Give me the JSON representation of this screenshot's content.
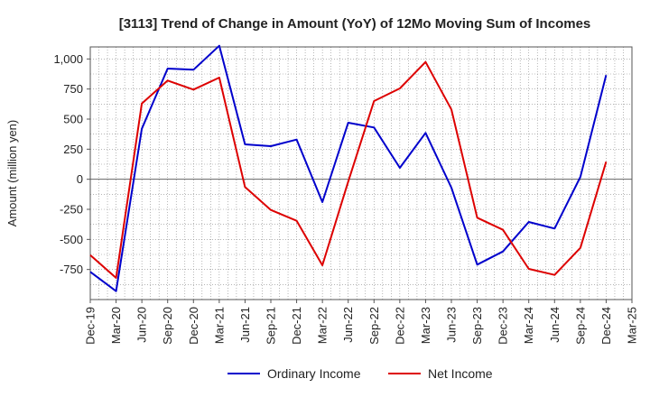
{
  "chart_data": {
    "type": "line",
    "title": "[3113]  Trend of Change in Amount (YoY) of 12Mo Moving Sum of Incomes",
    "xlabel": "",
    "ylabel": "Amount (million yen)",
    "ylim": [
      -1000,
      1100
    ],
    "yticks": [
      1000,
      750,
      500,
      250,
      0,
      -250,
      -500,
      -750
    ],
    "ytick_labels": [
      "1,000",
      "750",
      "500",
      "250",
      "0",
      "-250",
      "-500",
      "-750"
    ],
    "x": [
      "Dec-19",
      "Mar-20",
      "Jun-20",
      "Sep-20",
      "Dec-20",
      "Mar-21",
      "Jun-21",
      "Sep-21",
      "Dec-21",
      "Mar-22",
      "Jun-22",
      "Sep-22",
      "Dec-22",
      "Mar-23",
      "Jun-23",
      "Sep-23",
      "Dec-23",
      "Mar-24",
      "Jun-24",
      "Sep-24",
      "Dec-24",
      "Mar-25"
    ],
    "series": [
      {
        "name": "Ordinary Income",
        "color": "#0000cc",
        "values": [
          -770,
          -930,
          420,
          920,
          910,
          1110,
          290,
          275,
          330,
          -190,
          470,
          430,
          95,
          385,
          -70,
          -710,
          -600,
          -355,
          -410,
          20,
          865,
          null
        ]
      },
      {
        "name": "Net Income",
        "color": "#dd0000",
        "values": [
          -630,
          -820,
          630,
          820,
          745,
          845,
          -65,
          -255,
          -345,
          -715,
          -20,
          650,
          755,
          975,
          580,
          -320,
          -420,
          -745,
          -795,
          -570,
          145,
          null
        ]
      }
    ],
    "grid": true,
    "legend_position": "bottom-center"
  }
}
